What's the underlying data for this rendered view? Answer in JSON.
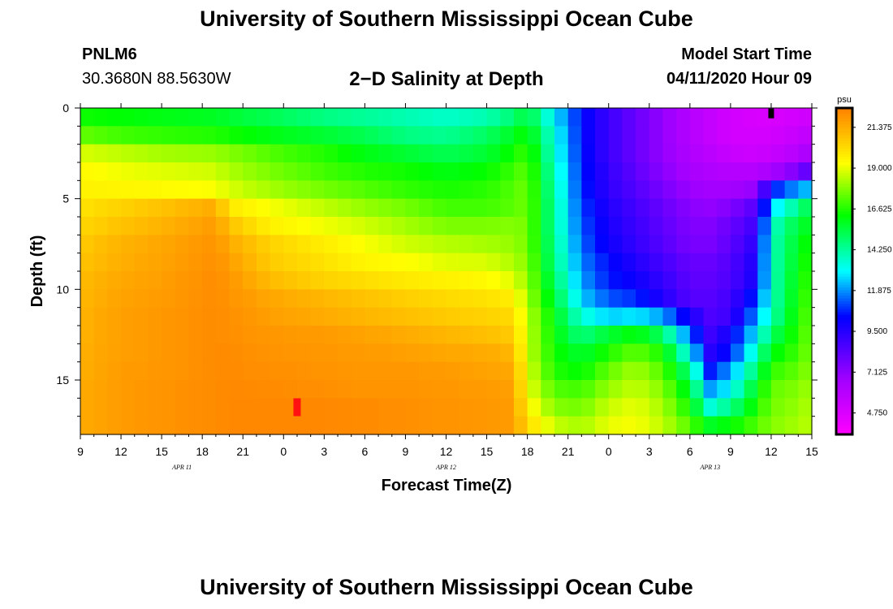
{
  "page": {
    "top_title": "University of Southern Mississippi Ocean Cube",
    "bottom_title": "University of Southern Mississippi Ocean Cube",
    "station_id": "PNLM6",
    "station_coords": "30.3680N 88.5630W",
    "plot_title": "2−D Salinity at Depth",
    "model_start_label": "Model Start Time",
    "model_start_value": "04/11/2020 Hour 09"
  },
  "chart_data": {
    "type": "heatmap",
    "title": "2−D Salinity at Depth",
    "xlabel": "Forecast Time(Z)",
    "ylabel": "Depth (ft)",
    "x_range_hours": [
      0,
      54
    ],
    "y_range_ft": [
      0,
      18
    ],
    "x_tick_labels": [
      "9",
      "12",
      "15",
      "18",
      "21",
      "0",
      "3",
      "6",
      "9",
      "12",
      "15",
      "18",
      "21",
      "0",
      "3",
      "6",
      "9",
      "12",
      "15"
    ],
    "date_labels": [
      {
        "label": "APR  11",
        "hour": 7.5
      },
      {
        "label": "APR  12",
        "hour": 27
      },
      {
        "label": "APR  13",
        "hour": 46.5
      }
    ],
    "y_ticks": [
      0,
      5,
      10,
      15
    ],
    "colorbar": {
      "unit": "psu",
      "min": 3.5,
      "max": 22.5,
      "tick_values": [
        21.375,
        19.0,
        16.625,
        14.25,
        11.875,
        9.5,
        7.125,
        4.75
      ],
      "tick_labels": [
        "21.375",
        "19.000",
        "16.625",
        "14.250",
        "11.875",
        "9.500",
        "7.125",
        "4.750"
      ]
    },
    "depth_levels_ft": [
      0,
      1,
      2,
      3,
      4,
      5,
      6,
      7,
      8,
      9,
      10,
      11,
      12,
      13,
      14,
      15,
      16,
      17
    ],
    "time_keyframes_hours": [
      0,
      3,
      6,
      10,
      11,
      14,
      18,
      21,
      24,
      27,
      30,
      32,
      33,
      35,
      37,
      39,
      41,
      43,
      45,
      46.5,
      48,
      50,
      51,
      53,
      54
    ],
    "salinity_keyframes_psu": [
      [
        16.4,
        16.2,
        16.0,
        15.8,
        15.6,
        15.2,
        14.6,
        14.3,
        14.0,
        13.7,
        14.0,
        14.8,
        15.6,
        12.8,
        10.5,
        9.0,
        8.0,
        7.0,
        6.0,
        5.5,
        5.0,
        4.8,
        4.8,
        5.0,
        5.2
      ],
      [
        17.4,
        17.0,
        16.8,
        16.6,
        16.4,
        16.0,
        15.6,
        15.2,
        14.6,
        14.4,
        15.0,
        15.8,
        16.4,
        13.3,
        10.5,
        9.0,
        8.0,
        7.0,
        6.0,
        5.5,
        5.0,
        5.0,
        5.0,
        5.4,
        5.8
      ],
      [
        18.8,
        18.5,
        18.2,
        18.0,
        17.8,
        17.2,
        16.6,
        16.0,
        15.6,
        15.2,
        15.6,
        16.4,
        17.0,
        13.5,
        10.6,
        9.0,
        8.0,
        7.0,
        6.2,
        5.8,
        5.4,
        5.2,
        5.4,
        6.0,
        6.5
      ],
      [
        19.4,
        19.1,
        18.9,
        18.7,
        18.3,
        17.7,
        17.0,
        16.6,
        16.4,
        16.0,
        16.3,
        16.9,
        17.4,
        13.8,
        10.7,
        9.2,
        8.2,
        7.2,
        6.4,
        6.2,
        6.0,
        6.0,
        6.5,
        7.5,
        8.5
      ],
      [
        19.6,
        19.5,
        19.4,
        19.2,
        18.8,
        18.2,
        17.6,
        17.2,
        16.8,
        16.5,
        16.7,
        17.2,
        17.6,
        14.0,
        10.8,
        9.3,
        8.5,
        7.6,
        6.8,
        6.6,
        6.6,
        7.0,
        10.5,
        12.0,
        12.5
      ],
      [
        20.0,
        20.4,
        20.8,
        21.4,
        19.8,
        19.2,
        18.5,
        18.0,
        17.6,
        17.0,
        17.0,
        17.3,
        17.6,
        14.2,
        11.0,
        9.6,
        8.8,
        8.0,
        7.2,
        7.0,
        7.4,
        8.5,
        12.5,
        14.5,
        15.5
      ],
      [
        20.3,
        20.8,
        21.2,
        21.8,
        20.8,
        19.6,
        19.1,
        18.7,
        18.2,
        17.7,
        17.7,
        17.8,
        17.6,
        14.2,
        11.2,
        9.8,
        9.0,
        8.2,
        7.4,
        7.4,
        8.0,
        9.0,
        13.6,
        15.5,
        16.0
      ],
      [
        20.6,
        21.2,
        21.5,
        22.0,
        21.4,
        20.4,
        19.7,
        19.2,
        18.7,
        18.4,
        18.2,
        18.0,
        17.6,
        14.4,
        11.4,
        10.0,
        9.2,
        8.4,
        7.6,
        7.6,
        8.2,
        9.5,
        13.8,
        15.8,
        16.5
      ],
      [
        20.8,
        21.3,
        21.6,
        22.1,
        21.7,
        20.6,
        20.0,
        19.5,
        19.3,
        18.9,
        18.8,
        18.3,
        17.8,
        14.6,
        11.7,
        10.4,
        9.6,
        8.8,
        8.0,
        8.0,
        8.5,
        9.8,
        13.8,
        16.0,
        16.8
      ],
      [
        21.0,
        21.5,
        21.7,
        22.2,
        21.9,
        21.0,
        20.4,
        20.1,
        19.8,
        19.6,
        19.4,
        18.9,
        18.0,
        15.0,
        12.0,
        10.6,
        10.0,
        9.2,
        8.2,
        8.2,
        8.6,
        10.0,
        13.8,
        16.2,
        17.0
      ],
      [
        21.1,
        21.6,
        21.8,
        22.2,
        22.0,
        21.5,
        21.1,
        20.8,
        20.5,
        20.2,
        20.0,
        19.7,
        18.2,
        15.5,
        12.5,
        11.2,
        10.8,
        9.6,
        8.4,
        8.4,
        8.8,
        11.0,
        13.8,
        16.4,
        17.2
      ],
      [
        21.2,
        21.7,
        21.9,
        22.2,
        22.1,
        21.7,
        21.4,
        21.1,
        20.9,
        20.6,
        20.4,
        20.2,
        18.5,
        16.0,
        13.5,
        12.5,
        12.8,
        12.0,
        9.8,
        8.6,
        9.0,
        12.0,
        14.0,
        16.6,
        17.4
      ],
      [
        21.2,
        21.7,
        21.9,
        22.2,
        22.1,
        21.9,
        21.8,
        21.6,
        21.4,
        21.1,
        20.9,
        20.6,
        18.6,
        16.2,
        14.6,
        15.6,
        16.2,
        15.0,
        11.4,
        9.0,
        10.0,
        13.0,
        15.0,
        16.8,
        17.6
      ],
      [
        21.3,
        21.7,
        21.9,
        22.2,
        22.2,
        22.0,
        21.9,
        21.8,
        21.7,
        21.5,
        21.4,
        21.1,
        18.6,
        16.4,
        15.6,
        16.6,
        17.4,
        16.5,
        13.0,
        9.5,
        10.6,
        14.0,
        16.0,
        17.0,
        17.8
      ],
      [
        21.3,
        21.8,
        21.9,
        22.2,
        22.2,
        22.1,
        22.0,
        21.9,
        21.9,
        21.8,
        21.6,
        21.5,
        18.9,
        16.6,
        16.2,
        17.4,
        18.2,
        17.2,
        14.6,
        10.6,
        12.0,
        15.0,
        16.8,
        17.4,
        18.0
      ],
      [
        21.4,
        21.8,
        22.0,
        22.2,
        22.3,
        22.2,
        22.1,
        22.0,
        22.0,
        21.9,
        21.8,
        21.7,
        19.1,
        17.2,
        17.0,
        18.0,
        18.6,
        17.8,
        15.6,
        12.0,
        13.0,
        16.0,
        17.4,
        17.8,
        18.2
      ],
      [
        21.4,
        21.8,
        22.0,
        22.2,
        22.3,
        22.3,
        22.3,
        22.2,
        22.1,
        22.0,
        21.9,
        21.8,
        19.6,
        17.8,
        17.6,
        18.6,
        19.0,
        18.2,
        16.4,
        13.5,
        14.5,
        16.6,
        17.6,
        18.0,
        18.4
      ],
      [
        21.4,
        21.8,
        22.0,
        22.2,
        22.3,
        22.3,
        22.3,
        22.2,
        22.1,
        22.0,
        21.9,
        21.8,
        20.2,
        18.6,
        18.2,
        19.0,
        19.2,
        18.5,
        17.2,
        15.8,
        16.2,
        17.2,
        17.8,
        18.2,
        18.5
      ]
    ],
    "markers": [
      {
        "name": "red-marker",
        "hour": 16,
        "depth_ft": 16.5,
        "color": "#ff1111"
      },
      {
        "name": "black-marker",
        "hour": 51,
        "depth_ft": 0.3,
        "color": "#000000"
      }
    ],
    "colors": {
      "marker_red": "#ff1111",
      "marker_black": "#000000"
    }
  }
}
